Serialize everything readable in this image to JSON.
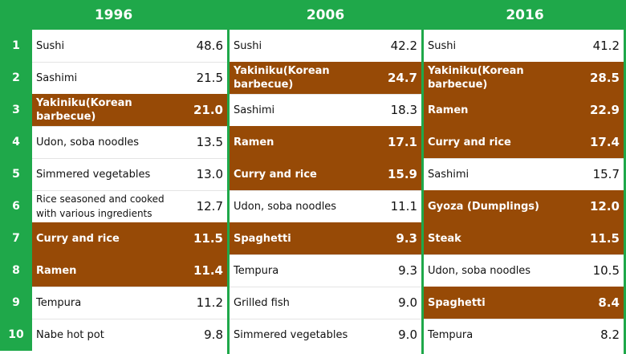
{
  "columns": [
    {
      "year": "1996",
      "items": [
        {
          "rank": "1",
          "name": "Sushi",
          "value": "48.6",
          "highlight": false
        },
        {
          "rank": "2",
          "name": "Sashimi",
          "value": "21.5",
          "highlight": false
        },
        {
          "rank": "3",
          "name": "Yakiniku(Korean barbecue)",
          "value": "21.0",
          "highlight": true
        },
        {
          "rank": "4",
          "name": "Udon, soba noodles",
          "value": "13.5",
          "highlight": false
        },
        {
          "rank": "5",
          "name": "Simmered vegetables",
          "value": "13.0",
          "highlight": false
        },
        {
          "rank": "6",
          "name": "Rice seasoned and cooked with various ingredients",
          "value": "12.7",
          "highlight": false
        },
        {
          "rank": "7",
          "name": "Curry and rice",
          "value": "11.5",
          "highlight": true
        },
        {
          "rank": "8",
          "name": "Ramen",
          "value": "11.4",
          "highlight": true
        },
        {
          "rank": "9",
          "name": "Tempura",
          "value": "11.2",
          "highlight": false
        },
        {
          "rank": "10",
          "name": "Nabe hot pot",
          "value": "9.8",
          "highlight": false
        }
      ]
    },
    {
      "year": "2006",
      "items": [
        {
          "name": "Sushi",
          "value": "42.2",
          "highlight": false
        },
        {
          "name": "Yakiniku(Korean barbecue)",
          "value": "24.7",
          "highlight": true
        },
        {
          "name": "Sashimi",
          "value": "18.3",
          "highlight": false
        },
        {
          "name": "Ramen",
          "value": "17.1",
          "highlight": true
        },
        {
          "name": "Curry and rice",
          "value": "15.9",
          "highlight": true
        },
        {
          "name": "Udon, soba noodles",
          "value": "11.1",
          "highlight": false
        },
        {
          "name": "Spaghetti",
          "value": "9.3",
          "highlight": true
        },
        {
          "name": "Tempura",
          "value": "9.3",
          "highlight": false
        },
        {
          "name": "Grilled fish",
          "value": "9.0",
          "highlight": false
        },
        {
          "name": "Simmered vegetables",
          "value": "9.0",
          "highlight": false
        }
      ]
    },
    {
      "year": "2016",
      "items": [
        {
          "name": "Sushi",
          "value": "41.2",
          "highlight": false
        },
        {
          "name": "Yakiniku(Korean barbecue)",
          "value": "28.5",
          "highlight": true
        },
        {
          "name": "Ramen",
          "value": "22.9",
          "highlight": true
        },
        {
          "name": "Curry and rice",
          "value": "17.4",
          "highlight": true
        },
        {
          "name": "Sashimi",
          "value": "15.7",
          "highlight": false
        },
        {
          "name": "Gyoza (Dumplings)",
          "value": "12.0",
          "highlight": true
        },
        {
          "name": "Steak",
          "value": "11.5",
          "highlight": true
        },
        {
          "name": "Udon, soba noodles",
          "value": "10.5",
          "highlight": false
        },
        {
          "name": "Spaghetti",
          "value": "8.4",
          "highlight": true
        },
        {
          "name": "Tempura",
          "value": "8.2",
          "highlight": false
        }
      ]
    }
  ],
  "colors": {
    "header_green": "#1fa84a",
    "highlight_brown": "#974a06"
  }
}
